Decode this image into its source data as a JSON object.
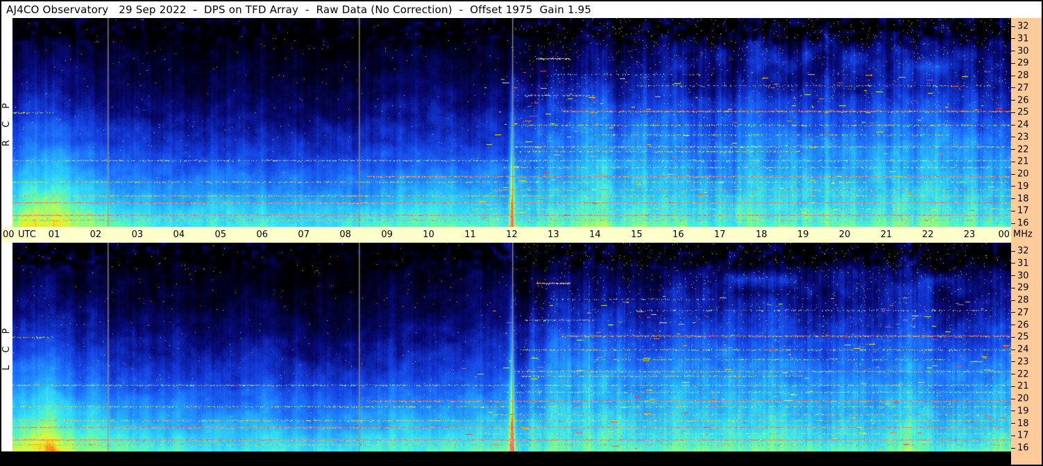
{
  "title_bar": {
    "text": "AJ4CO Observatory   29 Sep 2022  -  DPS on TFD Array  -  Raw Data (No Correction)  -  Offset 1975  Gain 1.95"
  },
  "panels": {
    "top": {
      "name": "RCP",
      "label": "R C P"
    },
    "bottom": {
      "name": "LCP",
      "label": "L C P"
    }
  },
  "time_axis": {
    "left_label": "00",
    "unit_label": "UTC",
    "hour_labels": [
      "01",
      "02",
      "03",
      "04",
      "05",
      "06",
      "07",
      "08",
      "09",
      "10",
      "11",
      "12",
      "13",
      "14",
      "15",
      "16",
      "17",
      "18",
      "19",
      "20",
      "21",
      "22",
      "23"
    ],
    "right_label": "00",
    "right_unit": "MHz"
  },
  "freq_axis": {
    "ticks": [
      32,
      31,
      30,
      29,
      28,
      27,
      26,
      25,
      24,
      23,
      22,
      21,
      20,
      19,
      18,
      17,
      16
    ]
  },
  "colors": {
    "title_bg": "#FFFFFF",
    "time_bar_bg": "#FFFFCC",
    "freq_strip_bg": "#FFCC99",
    "text": "#000000",
    "frame": "#000000",
    "calibration_line": "#9E9476"
  },
  "chart_data": {
    "type": "heatmap",
    "subtype": "radio spectrogram (dynamic spectrum), dual polarization",
    "title": "AJ4CO Observatory  29 Sep 2022  -  DPS on TFD Array  -  Raw Data (No Correction)  -  Offset 1975  Gain 1.95",
    "observatory": "AJ4CO Observatory",
    "date": "29 Sep 2022",
    "instrument": "DPS on TFD Array",
    "processing": "Raw Data (No Correction)",
    "offset": 1975,
    "gain": 1.95,
    "panels": [
      "RCP",
      "LCP"
    ],
    "x_axis": {
      "unit": "UTC hours",
      "min": 0,
      "max": 24,
      "ticks": [
        "00",
        "01",
        "02",
        "03",
        "04",
        "05",
        "06",
        "07",
        "08",
        "09",
        "10",
        "11",
        "12",
        "13",
        "14",
        "15",
        "16",
        "17",
        "18",
        "19",
        "20",
        "21",
        "22",
        "23",
        "00"
      ]
    },
    "y_axis": {
      "unit": "MHz",
      "min": 16,
      "max": 32,
      "ticks": [
        32,
        31,
        30,
        29,
        28,
        27,
        26,
        25,
        24,
        23,
        22,
        21,
        20,
        19,
        18,
        17,
        16
      ]
    },
    "colormap": "black-blue-cyan-green-yellow-orange-red",
    "calibration_marks_utc": [
      2.285,
      8.32,
      12.0
    ],
    "rfi_lines": [
      {
        "f": 25.1,
        "t0": 13.2,
        "t1": 24,
        "amp": 0.93,
        "d": 0.85
      },
      {
        "f": 25.0,
        "t0": 0.0,
        "t1": 1.0,
        "amp": 0.88,
        "d": 0.5
      },
      {
        "f": 27.2,
        "t0": 15.0,
        "t1": 23.5,
        "amp": 0.9,
        "d": 0.35
      },
      {
        "f": 26.4,
        "t0": 12.3,
        "t1": 14.0,
        "amp": 0.92,
        "d": 0.6
      },
      {
        "f": 28.1,
        "t0": 13.0,
        "t1": 17.0,
        "amp": 0.85,
        "d": 0.25
      },
      {
        "f": 29.4,
        "t0": 12.6,
        "t1": 13.4,
        "amp": 1.0,
        "d": 0.9,
        "color": "#FFF8D0"
      },
      {
        "f": 24.0,
        "t0": 12.0,
        "t1": 24,
        "amp": 0.85,
        "d": 0.5
      },
      {
        "f": 23.2,
        "t0": 14.0,
        "t1": 22.5,
        "amp": 0.82,
        "d": 0.4
      },
      {
        "f": 22.2,
        "t0": 12.0,
        "t1": 24,
        "amp": 0.92,
        "d": 0.8
      },
      {
        "f": 21.8,
        "t0": 12.2,
        "t1": 19.0,
        "amp": 0.85,
        "d": 0.5
      },
      {
        "f": 21.1,
        "t0": 0,
        "t1": 24,
        "amp": 0.88,
        "d": 0.6
      },
      {
        "f": 20.5,
        "t0": 11.8,
        "t1": 24,
        "amp": 0.86,
        "d": 0.6
      },
      {
        "f": 19.8,
        "t0": 8.5,
        "t1": 24,
        "amp": 0.95,
        "d": 0.85
      },
      {
        "f": 19.3,
        "t0": 0,
        "t1": 24,
        "amp": 0.85,
        "d": 0.5
      },
      {
        "f": 18.7,
        "t0": 11.5,
        "t1": 24,
        "amp": 0.93,
        "d": 0.8
      },
      {
        "f": 18.2,
        "t0": 0,
        "t1": 24,
        "amp": 0.87,
        "d": 0.6
      },
      {
        "f": 17.6,
        "t0": 0,
        "t1": 24,
        "amp": 0.95,
        "d": 0.9
      },
      {
        "f": 17.1,
        "t0": 11.0,
        "t1": 24,
        "amp": 0.88,
        "d": 0.7
      },
      {
        "f": 16.6,
        "t0": 0,
        "t1": 24,
        "amp": 0.96,
        "d": 0.95
      },
      {
        "f": 16.2,
        "t0": 0,
        "t1": 24,
        "amp": 0.9,
        "d": 0.8
      }
    ],
    "features": [
      "galactic background increases toward lower frequencies (cyan/green near 16-19 MHz)",
      "very dark band above ~30 MHz with blotchy black patches",
      "quiet dim interval roughly 02:20-08:20 UTC",
      "brighter dawn region 00:00-02:00 UTC at low frequencies",
      "daytime ionospheric brightening and dense RFI after ~12:00 UTC",
      "vertical tan calibration lines at ~02:17, ~08:19 and 12:00 UTC",
      "horizontal speckled RFI lines strongest between 16 and 26 MHz in right half"
    ]
  }
}
